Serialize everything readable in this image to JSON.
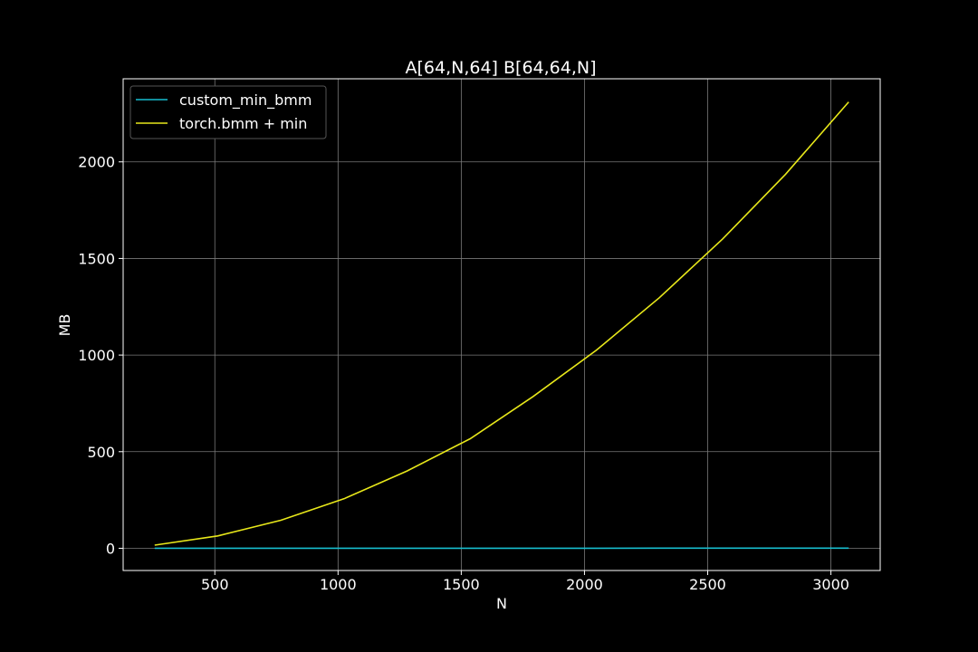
{
  "chart_data": {
    "type": "line",
    "title": "A[64,N,64] B[64,64,N]",
    "xlabel": "N",
    "ylabel": "MB",
    "xlim": [
      128,
      3200
    ],
    "ylim": [
      -115,
      2430
    ],
    "xticks": [
      500,
      1000,
      1500,
      2000,
      2500,
      3000
    ],
    "yticks": [
      0,
      500,
      1000,
      1500,
      2000
    ],
    "grid": true,
    "legend_position": "top-left",
    "background": "#000000",
    "x": [
      256,
      512,
      768,
      1024,
      1280,
      1536,
      1792,
      2048,
      2304,
      2560,
      2816,
      3072
    ],
    "series": [
      {
        "name": "custom_min_bmm",
        "color": "#17becf",
        "values": [
          0.1,
          0.2,
          0.2,
          0.3,
          0.3,
          0.4,
          0.5,
          0.5,
          0.6,
          0.6,
          0.7,
          0.8
        ]
      },
      {
        "name": "torch.bmm + min",
        "color": "#e8e81a",
        "values": [
          16,
          64,
          145,
          256,
          400,
          567,
          786,
          1025,
          1297,
          1600,
          1936,
          2310
        ]
      }
    ]
  }
}
